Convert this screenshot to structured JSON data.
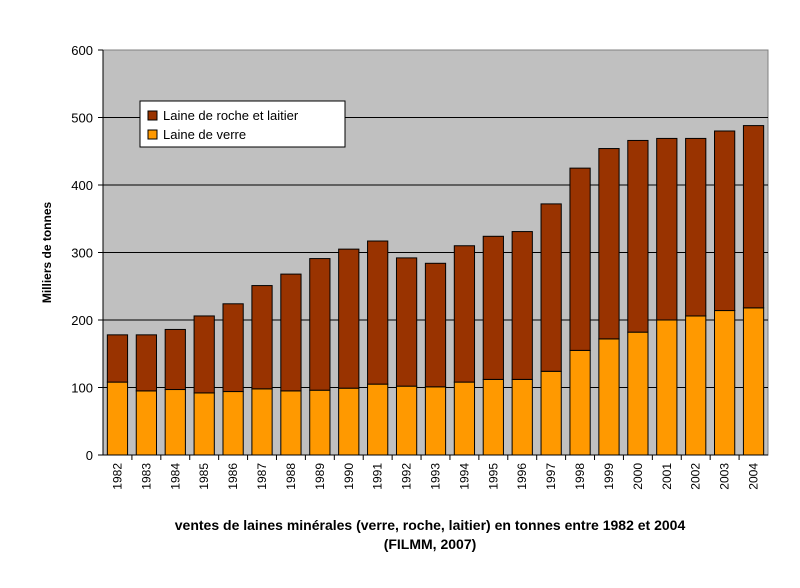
{
  "chart_data": {
    "type": "bar",
    "stacked": true,
    "title": "ventes de laines minérales (verre, roche, laitier) en tonnes entre 1982 et 2004",
    "subtitle": "(FILMM, 2007)",
    "xlabel": "",
    "ylabel": "Milliers de tonnes",
    "ylim": [
      0,
      600
    ],
    "yticks": [
      0,
      100,
      200,
      300,
      400,
      500,
      600
    ],
    "grid": true,
    "legend_position": "top-left",
    "categories": [
      "1982",
      "1983",
      "1984",
      "1985",
      "1986",
      "1987",
      "1988",
      "1989",
      "1990",
      "1991",
      "1992",
      "1993",
      "1994",
      "1995",
      "1996",
      "1997",
      "1998",
      "1999",
      "2000",
      "2001",
      "2002",
      "2003",
      "2004"
    ],
    "series": [
      {
        "name": "Laine de verre",
        "color": "#FF9900",
        "values": [
          108,
          95,
          97,
          92,
          94,
          98,
          95,
          96,
          99,
          105,
          102,
          101,
          108,
          112,
          112,
          124,
          155,
          172,
          182,
          200,
          206,
          214,
          218
        ]
      },
      {
        "name": "Laine de roche et laitier",
        "color": "#993300",
        "values": [
          70,
          83,
          89,
          114,
          130,
          153,
          173,
          195,
          206,
          212,
          190,
          183,
          202,
          212,
          219,
          248,
          270,
          282,
          284,
          269,
          263,
          266,
          270
        ]
      }
    ],
    "legend_order": [
      1,
      0
    ],
    "plot_background": "#C0C0C0"
  }
}
